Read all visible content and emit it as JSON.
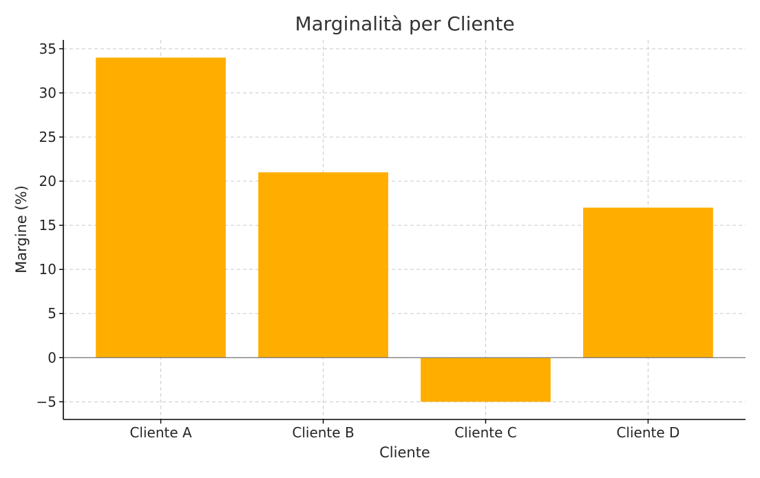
{
  "chart_data": {
    "type": "bar",
    "title": "Marginalità per Cliente",
    "xlabel": "Cliente",
    "ylabel": "Margine (%)",
    "categories": [
      "Cliente A",
      "Cliente B",
      "Cliente C",
      "Cliente D"
    ],
    "values": [
      34,
      21,
      -5,
      17
    ],
    "ylim": [
      -7,
      36
    ],
    "yticks": [
      -5,
      0,
      5,
      10,
      15,
      20,
      25,
      30,
      35
    ],
    "ytick_labels": [
      "−5",
      "0",
      "5",
      "10",
      "15",
      "20",
      "25",
      "30",
      "35"
    ],
    "bar_color": "#FFAE00",
    "zero_line_color": "#808080",
    "grid": true
  }
}
